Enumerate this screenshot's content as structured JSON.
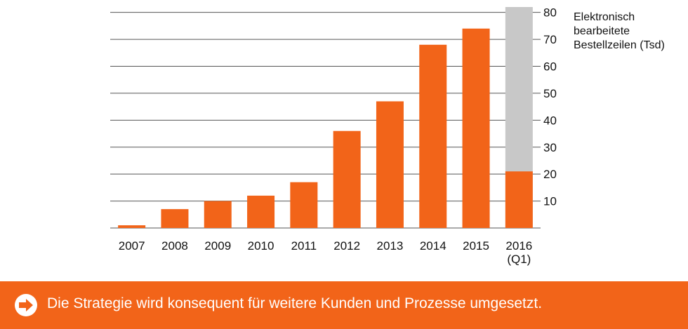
{
  "chart_data": {
    "type": "bar",
    "categories": [
      "2007",
      "2008",
      "2009",
      "2010",
      "2011",
      "2012",
      "2013",
      "2014",
      "2015",
      "2016\n(Q1)"
    ],
    "series": [
      {
        "values": [
          1,
          7,
          10,
          12,
          17,
          36,
          47,
          68,
          74,
          21
        ]
      }
    ],
    "background_bar": {
      "category": "2016\n(Q1)",
      "value": 82
    },
    "ylabel": "Elektronisch\nbearbeitete\nBestellzeilen (Tsd)",
    "ylim": [
      0,
      82
    ],
    "yticks": [
      10,
      20,
      30,
      40,
      50,
      60,
      70,
      80
    ],
    "y_axis_side": "right",
    "grid": true,
    "colors": {
      "bar": "#f26419",
      "background_bar": "#c8c8c8",
      "grid": "#555555"
    }
  },
  "banner": {
    "text": "Die Strategie wird konsequent für weitere Kunden und Prozesse umgesetzt.",
    "icon": "arrow-right-icon",
    "color": "#f26419"
  }
}
